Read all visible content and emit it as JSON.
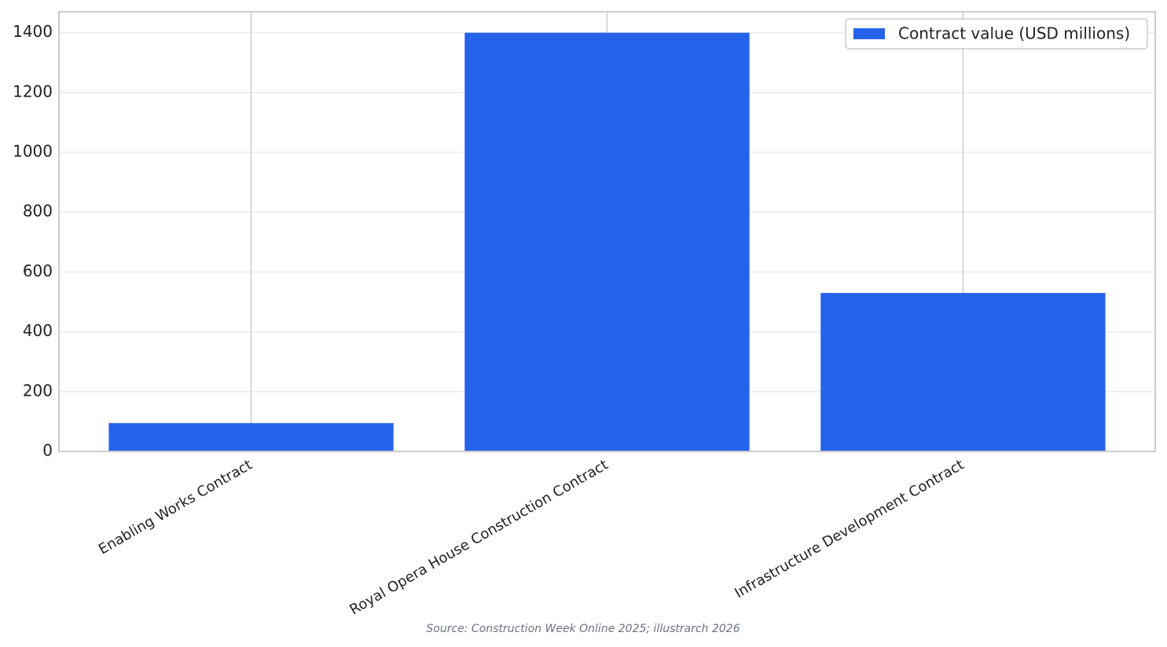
{
  "chart_data": {
    "type": "bar",
    "categories": [
      "Enabling Works Contract",
      "Royal Opera House Construction Contract",
      "Infrastructure Development Contract"
    ],
    "series": [
      {
        "name": "Contract value (USD millions)",
        "color": "#2563eb",
        "values": [
          95,
          1400,
          530
        ]
      }
    ],
    "ylim": [
      0,
      1470
    ],
    "yticks": [
      0,
      200,
      400,
      600,
      800,
      1000,
      1200,
      1400
    ],
    "grid": true,
    "legend": "upper-right",
    "source": "Source: Construction Week Online 2025; illustrarch 2026"
  }
}
